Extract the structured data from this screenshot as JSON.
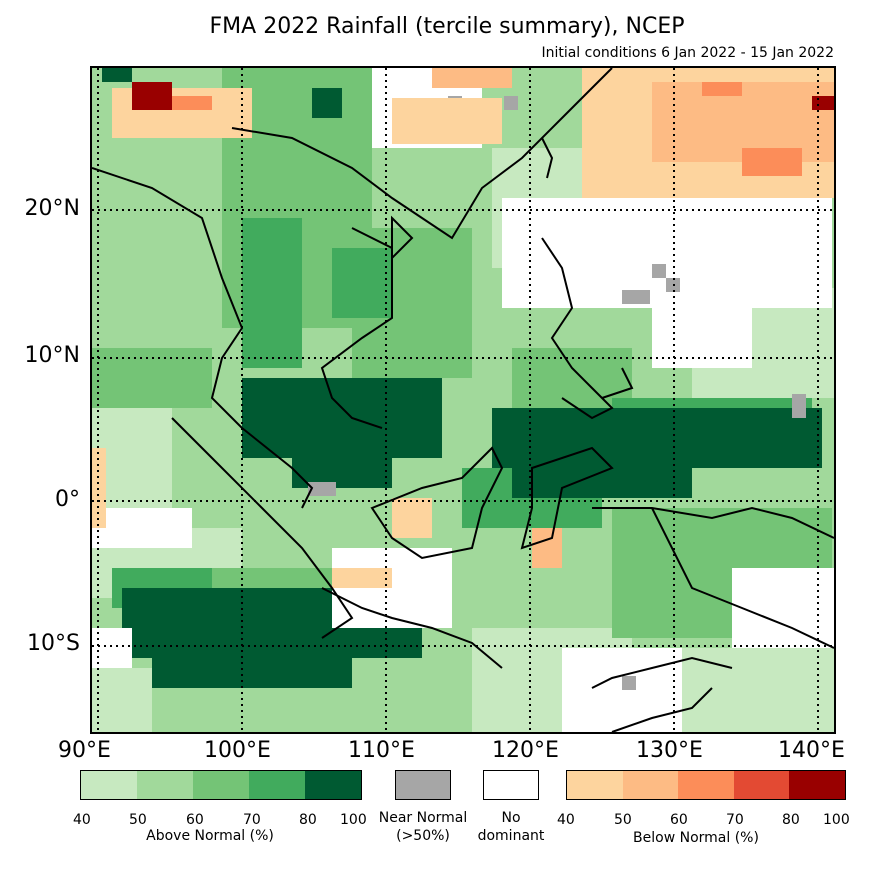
{
  "title": "FMA 2022 Rainfall (tercile summary), NCEP",
  "subtitle": "Initial conditions 6 Jan 2022 - 15 Jan 2022",
  "lat_ticks": [
    "20°N",
    "10°N",
    "0°",
    "10°S"
  ],
  "lon_ticks": [
    "90°E",
    "100°E",
    "110°E",
    "120°E",
    "130°E",
    "140°E"
  ],
  "legend": {
    "above": {
      "label": "Above Normal (%)",
      "ticks": [
        "40",
        "50",
        "60",
        "70",
        "80",
        "100"
      ],
      "colors": [
        "#c7e9c0",
        "#a1d99b",
        "#74c476",
        "#41ab5d",
        "#005a32"
      ]
    },
    "near": {
      "label_1": "Near Normal",
      "label_2": "(>50%)",
      "color": "#a6a6a6"
    },
    "none": {
      "label_1": "No",
      "label_2": "dominant",
      "color": "#ffffff"
    },
    "below": {
      "label": "Below Normal (%)",
      "ticks": [
        "40",
        "50",
        "60",
        "70",
        "80",
        "100"
      ],
      "colors": [
        "#fdd49e",
        "#fdbb84",
        "#fc8d59",
        "#e34a33",
        "#990000"
      ]
    }
  }
}
